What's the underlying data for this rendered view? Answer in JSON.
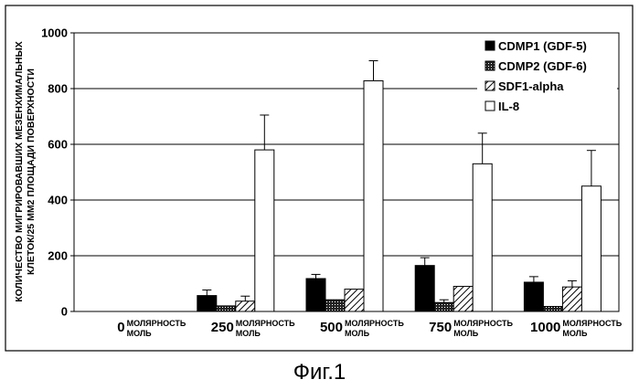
{
  "chart_data": {
    "type": "bar",
    "ylabel_line1": "КОЛИЧЕСТВО МИГРИРОВАВШИХ МЕЗЕНХИМАЛЬНЫХ",
    "ylabel_line2": "КЛЕТОК/25 ММ2 ПЛОЩАДИ ПОВЕРХНОСТИ",
    "ylim": [
      0,
      1000
    ],
    "yticks": [
      "0",
      "200",
      "400",
      "600",
      "800",
      "1000"
    ],
    "grid": true,
    "legend_position": "top-right",
    "categories": [
      {
        "value": "0",
        "unit_top": "МОЛЯРНОСТЬ",
        "unit_bottom": "МОЛЬ"
      },
      {
        "value": "250",
        "unit_top": "МОЛЯРНОСТЬ",
        "unit_bottom": "МОЛЬ"
      },
      {
        "value": "500",
        "unit_top": "МОЛЯРНОСТЬ",
        "unit_bottom": "МОЛЬ"
      },
      {
        "value": "750",
        "unit_top": "МОЛЯРНОСТЬ",
        "unit_bottom": "МОЛЬ"
      },
      {
        "value": "1000",
        "unit_top": "МОЛЯРНОСТЬ",
        "unit_bottom": "МОЛЬ"
      }
    ],
    "series": [
      {
        "name": "CDMP1 (GDF-5)",
        "fill": "solid",
        "values": [
          0,
          57,
          118,
          165,
          105
        ],
        "errors": [
          0,
          20,
          15,
          28,
          20
        ]
      },
      {
        "name": "CDMP2 (GDF-6)",
        "fill": "dots",
        "values": [
          0,
          20,
          42,
          32,
          18
        ],
        "errors": [
          0,
          0,
          0,
          10,
          0
        ]
      },
      {
        "name": "SDF1-alpha",
        "fill": "hatch",
        "values": [
          0,
          37,
          80,
          90,
          88
        ],
        "errors": [
          0,
          18,
          0,
          0,
          22
        ]
      },
      {
        "name": "IL-8",
        "fill": "white",
        "values": [
          0,
          580,
          828,
          530,
          450
        ],
        "errors": [
          0,
          125,
          72,
          110,
          128
        ]
      }
    ]
  },
  "caption": "Фиг.1"
}
